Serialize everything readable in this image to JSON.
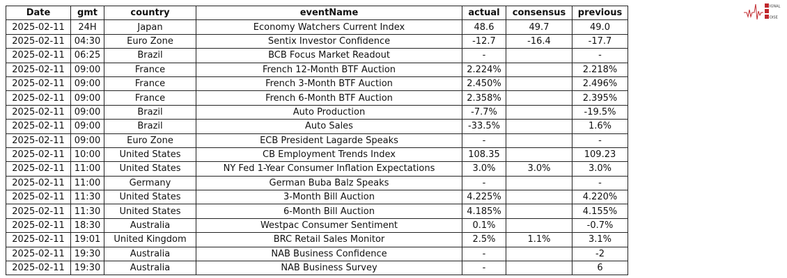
{
  "logo": {
    "text": "SIGNAL 2 NOISE",
    "color": "#c0282d"
  },
  "table": {
    "columns": [
      "Date",
      "gmt",
      "country",
      "eventName",
      "actual",
      "consensus",
      "previous"
    ],
    "rows": [
      [
        "2025-02-11",
        "24H",
        "Japan",
        "Economy Watchers Current Index",
        "48.6",
        "49.7",
        "49.0"
      ],
      [
        "2025-02-11",
        "04:30",
        "Euro Zone",
        "Sentix Investor Confidence",
        "-12.7",
        "-16.4",
        "-17.7"
      ],
      [
        "2025-02-11",
        "06:25",
        "Brazil",
        "BCB Focus Market Readout",
        "-",
        "",
        "-"
      ],
      [
        "2025-02-11",
        "09:00",
        "France",
        "French 12-Month BTF Auction",
        "2.224%",
        "",
        "2.218%"
      ],
      [
        "2025-02-11",
        "09:00",
        "France",
        "French 3-Month BTF Auction",
        "2.450%",
        "",
        "2.496%"
      ],
      [
        "2025-02-11",
        "09:00",
        "France",
        "French 6-Month BTF Auction",
        "2.358%",
        "",
        "2.395%"
      ],
      [
        "2025-02-11",
        "09:00",
        "Brazil",
        "Auto Production",
        "-7.7%",
        "",
        "-19.5%"
      ],
      [
        "2025-02-11",
        "09:00",
        "Brazil",
        "Auto Sales",
        "-33.5%",
        "",
        "1.6%"
      ],
      [
        "2025-02-11",
        "09:00",
        "Euro Zone",
        "ECB President Lagarde Speaks",
        "-",
        "",
        "-"
      ],
      [
        "2025-02-11",
        "10:00",
        "United States",
        "CB Employment Trends Index",
        "108.35",
        "",
        "109.23"
      ],
      [
        "2025-02-11",
        "11:00",
        "United States",
        "NY Fed 1-Year Consumer Inflation Expectations",
        "3.0%",
        "3.0%",
        "3.0%"
      ],
      [
        "2025-02-11",
        "11:00",
        "Germany",
        "German Buba Balz Speaks",
        "-",
        "",
        "-"
      ],
      [
        "2025-02-11",
        "11:30",
        "United States",
        "3-Month Bill Auction",
        "4.225%",
        "",
        "4.220%"
      ],
      [
        "2025-02-11",
        "11:30",
        "United States",
        "6-Month Bill Auction",
        "4.185%",
        "",
        "4.155%"
      ],
      [
        "2025-02-11",
        "18:30",
        "Australia",
        "Westpac Consumer Sentiment",
        "0.1%",
        "",
        "-0.7%"
      ],
      [
        "2025-02-11",
        "19:01",
        "United Kingdom",
        "BRC Retail Sales Monitor",
        "2.5%",
        "1.1%",
        "3.1%"
      ],
      [
        "2025-02-11",
        "19:30",
        "Australia",
        "NAB Business Confidence",
        "-",
        "",
        "-2"
      ],
      [
        "2025-02-11",
        "19:30",
        "Australia",
        "NAB Business Survey",
        "-",
        "",
        "6"
      ]
    ]
  }
}
